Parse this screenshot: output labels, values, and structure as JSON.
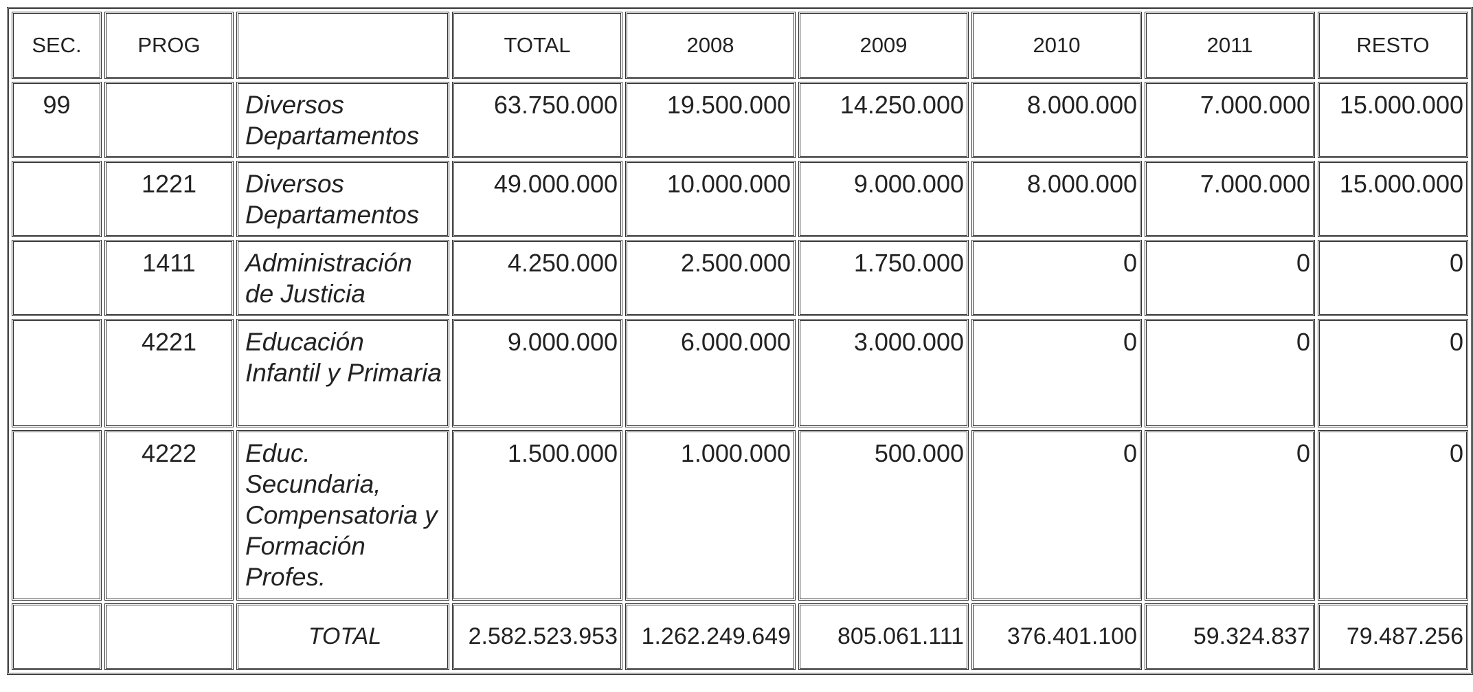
{
  "table": {
    "headers": [
      "SEC.",
      "PROG",
      "",
      "TOTAL",
      "2008",
      "2009",
      "2010",
      "2011",
      "RESTO"
    ],
    "rows": [
      {
        "sec": "99",
        "prog": "",
        "desc": "Diversos Departamentos",
        "total": "63.750.000",
        "y2008": "19.500.000",
        "y2009": "14.250.000",
        "y2010": "8.000.000",
        "y2011": "7.000.000",
        "resto": "15.000.000"
      },
      {
        "sec": "",
        "prog": "1221",
        "desc": "Diversos Departamentos",
        "total": "49.000.000",
        "y2008": "10.000.000",
        "y2009": "9.000.000",
        "y2010": "8.000.000",
        "y2011": "7.000.000",
        "resto": "15.000.000"
      },
      {
        "sec": "",
        "prog": "1411",
        "desc": "Administración de Justicia",
        "total": "4.250.000",
        "y2008": "2.500.000",
        "y2009": "1.750.000",
        "y2010": "0",
        "y2011": "0",
        "resto": "0"
      },
      {
        "sec": "",
        "prog": "4221",
        "desc": "Educación Infantil y Primaria",
        "total": "9.000.000",
        "y2008": "6.000.000",
        "y2009": "3.000.000",
        "y2010": "0",
        "y2011": "0",
        "resto": "0"
      },
      {
        "sec": "",
        "prog": "4222",
        "desc": "Educ. Secundaria, Compensatoria y Formación Profes.",
        "total": "1.500.000",
        "y2008": "1.000.000",
        "y2009": "500.000",
        "y2010": "0",
        "y2011": "0",
        "resto": "0"
      }
    ],
    "totals": {
      "sec": "",
      "prog": "",
      "label": "TOTAL",
      "total": "2.582.523.953",
      "y2008": "1.262.249.649",
      "y2009": "805.061.111",
      "y2010": "376.401.100",
      "y2011": "59.324.837",
      "resto": "79.487.256"
    }
  }
}
